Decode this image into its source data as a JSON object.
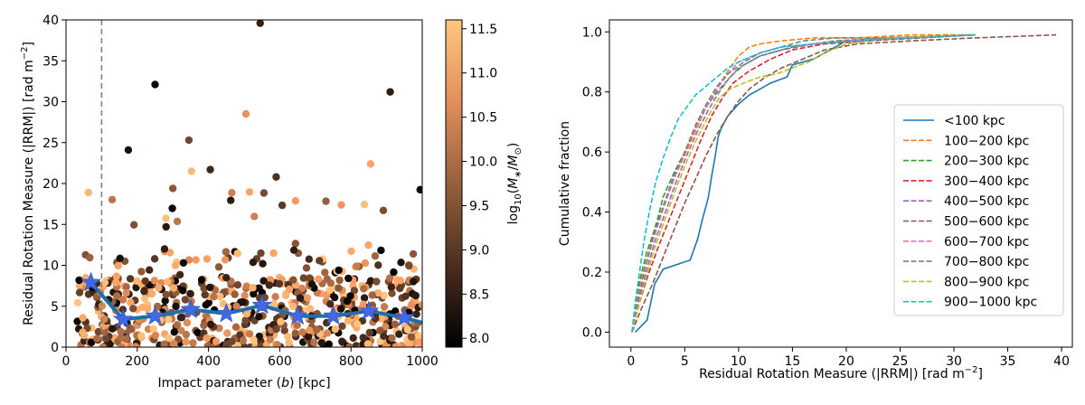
{
  "chart_data": [
    {
      "type": "scatter",
      "xlabel": "Impact parameter (b) [kpc]",
      "ylabel": "Residual Rotation Measure (|RRM|) [rad m⁻²]",
      "xlim": [
        0,
        1000
      ],
      "ylim": [
        0,
        40
      ],
      "xticks": [
        "0",
        "200",
        "400",
        "600",
        "800",
        "1000"
      ],
      "yticks": [
        "0",
        "5",
        "10",
        "15",
        "20",
        "25",
        "30",
        "35",
        "40"
      ],
      "vline_x": 100,
      "colorbar": {
        "label": "log10(M*/M⊙)",
        "range": [
          7.9,
          11.6
        ],
        "ticks": [
          "8.0",
          "8.5",
          "9.0",
          "9.5",
          "10.0",
          "10.5",
          "11.0",
          "11.5"
        ],
        "colormap": "copper"
      },
      "highlight_points": [
        {
          "x": 63,
          "y": 18.9,
          "c": 11.3
        },
        {
          "x": 352,
          "y": 21.5,
          "c": 11.3
        },
        {
          "x": 545,
          "y": 39.6,
          "c": 8.5
        },
        {
          "x": 250,
          "y": 32.1,
          "c": 8.1
        },
        {
          "x": 910,
          "y": 31.2,
          "c": 8.4
        },
        {
          "x": 505,
          "y": 28.5,
          "c": 10.6
        },
        {
          "x": 345,
          "y": 25.3,
          "c": 9.2
        },
        {
          "x": 175,
          "y": 24.1,
          "c": 8.2
        },
        {
          "x": 855,
          "y": 22.4,
          "c": 10.9
        },
        {
          "x": 405,
          "y": 21.7,
          "c": 8.6
        },
        {
          "x": 590,
          "y": 20.8,
          "c": 8.8
        },
        {
          "x": 300,
          "y": 19.4,
          "c": 9.5
        }
      ],
      "scatter_summary": {
        "n_points": 700,
        "x_range": [
          30,
          1000
        ],
        "y_bulk": [
          0,
          8
        ],
        "y_max": 39.6
      },
      "binned_median": {
        "name": "binned median",
        "x": [
          70,
          160,
          250,
          350,
          450,
          550,
          650,
          750,
          850,
          950
        ],
        "y": [
          7.9,
          3.4,
          3.8,
          4.6,
          4.1,
          5.1,
          3.8,
          3.8,
          4.4,
          3.6
        ]
      }
    },
    {
      "type": "line",
      "xlabel": "Residual Rotation Measure (|RRM|) [rad m⁻²]",
      "ylabel": "Cumulative fraction",
      "xlim": [
        -2,
        41
      ],
      "ylim": [
        -0.05,
        1.04
      ],
      "xticks": [
        "0",
        "5",
        "10",
        "15",
        "20",
        "25",
        "30",
        "35",
        "40"
      ],
      "yticks": [
        "0.0",
        "0.2",
        "0.4",
        "0.6",
        "0.8",
        "1.0"
      ],
      "legend_position": "center-right",
      "series": [
        {
          "name": "<100 kpc",
          "color": "#1f77b4",
          "dash": "solid",
          "x": [
            0.4,
            1.5,
            2.2,
            3.0,
            5.5,
            6.2,
            6.6,
            7.2,
            7.5,
            7.8,
            8.1,
            8.4,
            9.0,
            10.0,
            11.0,
            12.0,
            13.0,
            14.5,
            15.0,
            17.0,
            18.0,
            19.0,
            20.0,
            32.0
          ],
          "y": [
            0.0,
            0.04,
            0.16,
            0.21,
            0.24,
            0.31,
            0.37,
            0.45,
            0.52,
            0.58,
            0.65,
            0.68,
            0.72,
            0.76,
            0.79,
            0.81,
            0.83,
            0.85,
            0.89,
            0.91,
            0.93,
            0.95,
            0.97,
            0.99
          ]
        },
        {
          "name": "100−200 kpc",
          "color": "#ff7f0e",
          "dash": "dashed",
          "x": [
            0.1,
            0.6,
            1.3,
            2.0,
            3.0,
            4.0,
            5.0,
            6.0,
            7.0,
            8.0,
            9.0,
            10.0,
            11.0,
            12.0,
            14.0,
            17.0,
            21.0,
            26.0,
            32.0
          ],
          "y": [
            0.0,
            0.13,
            0.22,
            0.31,
            0.42,
            0.51,
            0.59,
            0.67,
            0.75,
            0.81,
            0.87,
            0.92,
            0.95,
            0.96,
            0.97,
            0.98,
            0.98,
            0.99,
            0.99
          ]
        },
        {
          "name": "200−300 kpc",
          "color": "#2ca02c",
          "dash": "dashed",
          "x": [
            0.1,
            0.5,
            1.0,
            1.5,
            2.0,
            2.5,
            3.0,
            4.0,
            5.0,
            6.0,
            7.0,
            8.0,
            9.0,
            10.0,
            12.0,
            15.0,
            19.0,
            24.0,
            32.0
          ],
          "y": [
            0.0,
            0.12,
            0.2,
            0.27,
            0.32,
            0.38,
            0.45,
            0.53,
            0.6,
            0.68,
            0.75,
            0.8,
            0.84,
            0.88,
            0.92,
            0.95,
            0.97,
            0.98,
            0.99
          ]
        },
        {
          "name": "300−400 kpc",
          "color": "#d62728",
          "dash": "dashed",
          "x": [
            0.1,
            0.8,
            1.5,
            2.5,
            3.5,
            4.5,
            5.5,
            6.5,
            7.5,
            8.5,
            9.5,
            11.0,
            13.0,
            15.0,
            18.0,
            22.0,
            27.0,
            32.0
          ],
          "y": [
            0.0,
            0.1,
            0.18,
            0.28,
            0.37,
            0.46,
            0.55,
            0.64,
            0.72,
            0.78,
            0.83,
            0.87,
            0.91,
            0.94,
            0.96,
            0.97,
            0.98,
            0.99
          ]
        },
        {
          "name": "400−500 kpc",
          "color": "#9467bd",
          "dash": "dashed",
          "x": [
            0.1,
            0.7,
            1.4,
            2.2,
            3.2,
            4.2,
            5.2,
            6.2,
            7.2,
            8.2,
            9.2,
            10.5,
            12.0,
            14.0,
            17.0,
            20.0,
            25.0,
            32.0
          ],
          "y": [
            0.0,
            0.1,
            0.2,
            0.3,
            0.4,
            0.5,
            0.59,
            0.67,
            0.74,
            0.8,
            0.85,
            0.89,
            0.92,
            0.94,
            0.96,
            0.97,
            0.98,
            0.99
          ]
        },
        {
          "name": "500−600 kpc",
          "color": "#8c564b",
          "dash": "dashed",
          "x": [
            0.1,
            1.0,
            2.0,
            3.0,
            4.0,
            5.0,
            6.0,
            7.0,
            8.0,
            9.0,
            10.0,
            11.0,
            12.5,
            14.0,
            16.0,
            18.0,
            21.0,
            26.0,
            32.0,
            39.5
          ],
          "y": [
            0.0,
            0.08,
            0.16,
            0.25,
            0.34,
            0.43,
            0.51,
            0.59,
            0.66,
            0.72,
            0.77,
            0.81,
            0.85,
            0.88,
            0.91,
            0.94,
            0.96,
            0.97,
            0.98,
            0.99
          ]
        },
        {
          "name": "600−700 kpc",
          "color": "#e377c2",
          "dash": "dashed",
          "x": [
            0.1,
            0.6,
            1.2,
            2.0,
            3.0,
            4.0,
            5.0,
            6.0,
            7.0,
            8.0,
            9.0,
            10.0,
            12.0,
            14.0,
            17.0,
            20.0,
            25.0,
            32.0
          ],
          "y": [
            0.0,
            0.11,
            0.2,
            0.3,
            0.41,
            0.51,
            0.6,
            0.68,
            0.75,
            0.81,
            0.86,
            0.9,
            0.93,
            0.95,
            0.96,
            0.97,
            0.98,
            0.99
          ]
        },
        {
          "name": "700−800 kpc",
          "color": "#7f7f7f",
          "dash": "dashed",
          "x": [
            0.1,
            0.6,
            1.3,
            2.0,
            3.0,
            4.0,
            5.0,
            6.0,
            7.0,
            8.0,
            9.0,
            10.5,
            12.0,
            14.0,
            16.0,
            19.0,
            23.0,
            32.0
          ],
          "y": [
            0.0,
            0.1,
            0.21,
            0.31,
            0.42,
            0.52,
            0.6,
            0.69,
            0.76,
            0.82,
            0.86,
            0.9,
            0.93,
            0.95,
            0.97,
            0.98,
            0.98,
            0.99
          ]
        },
        {
          "name": "800−900 kpc",
          "color": "#bcbd22",
          "dash": "dashed",
          "x": [
            0.1,
            0.7,
            1.4,
            2.2,
            3.2,
            4.2,
            5.2,
            6.2,
            7.2,
            8.2,
            9.2,
            10.5,
            12.0,
            13.5,
            15.0,
            16.5,
            18.0,
            20.0,
            24.0,
            32.0
          ],
          "y": [
            0.0,
            0.09,
            0.18,
            0.28,
            0.38,
            0.48,
            0.57,
            0.65,
            0.72,
            0.78,
            0.81,
            0.83,
            0.85,
            0.86,
            0.88,
            0.9,
            0.93,
            0.96,
            0.98,
            0.99
          ]
        },
        {
          "name": "900−1000 kpc",
          "color": "#17becf",
          "dash": "dashed",
          "x": [
            0.1,
            0.4,
            0.8,
            1.2,
            1.7,
            2.3,
            3.0,
            3.7,
            4.4,
            5.2,
            6.0,
            7.0,
            8.0,
            9.0,
            10.0,
            12.0,
            14.0,
            17.0,
            21.0,
            32.0
          ],
          "y": [
            0.0,
            0.1,
            0.2,
            0.3,
            0.4,
            0.5,
            0.58,
            0.65,
            0.71,
            0.75,
            0.79,
            0.82,
            0.85,
            0.88,
            0.9,
            0.93,
            0.95,
            0.96,
            0.97,
            0.99
          ]
        }
      ]
    }
  ]
}
